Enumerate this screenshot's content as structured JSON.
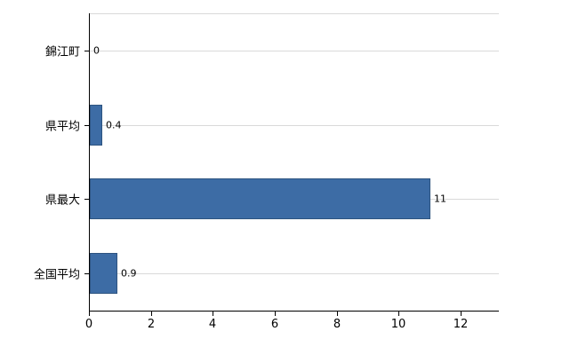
{
  "chart_data": {
    "type": "bar",
    "orientation": "horizontal",
    "title": "",
    "xlabel": "",
    "ylabel": "",
    "categories": [
      "錦江町",
      "県平均",
      "県最大",
      "全国平均"
    ],
    "values": [
      0,
      0.4,
      11,
      0.9
    ],
    "value_labels": [
      "0",
      "0.4",
      "11",
      "0.9"
    ],
    "xlim": [
      0,
      13.2
    ],
    "xticks": [
      0,
      2,
      4,
      6,
      8,
      10,
      12
    ],
    "grid": "horizontal-light",
    "legend": "none",
    "colors": {
      "bar_fill": "#3d6ca5",
      "bar_border": "#2e5480",
      "axis": "#000000",
      "gridline": "#d9d9d9",
      "background": "#ffffff",
      "text": "#000000"
    }
  }
}
